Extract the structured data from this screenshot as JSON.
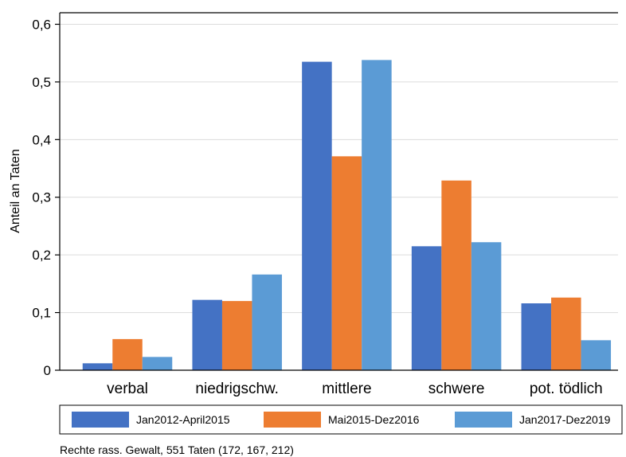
{
  "chart_data": {
    "type": "bar",
    "title": "",
    "xlabel": "",
    "ylabel": "Anteil an Taten",
    "ylim": [
      0,
      0.62
    ],
    "yticks": [
      0,
      0.1,
      0.2,
      0.3,
      0.4,
      0.5,
      0.6
    ],
    "ytick_labels": [
      "0",
      "0,1",
      "0,2",
      "0,3",
      "0,4",
      "0,5",
      "0,6"
    ],
    "grid": true,
    "legend_position": "bottom",
    "categories": [
      "verbal",
      "niedrigschw.",
      "mittlere",
      "schwere",
      "pot. tödlich"
    ],
    "series": [
      {
        "name": "Jan2012-April2015",
        "color": "#4472C4",
        "values": [
          0.012,
          0.122,
          0.535,
          0.215,
          0.116
        ]
      },
      {
        "name": "Mai2015-Dez2016",
        "color": "#ED7D31",
        "values": [
          0.054,
          0.12,
          0.371,
          0.329,
          0.126
        ]
      },
      {
        "name": "Jan2017-Dez2019",
        "color": "#5B9BD5",
        "values": [
          0.023,
          0.166,
          0.538,
          0.222,
          0.052
        ]
      }
    ],
    "note": "Rechte rass. Gewalt, 551 Taten (172, 167, 212)"
  }
}
